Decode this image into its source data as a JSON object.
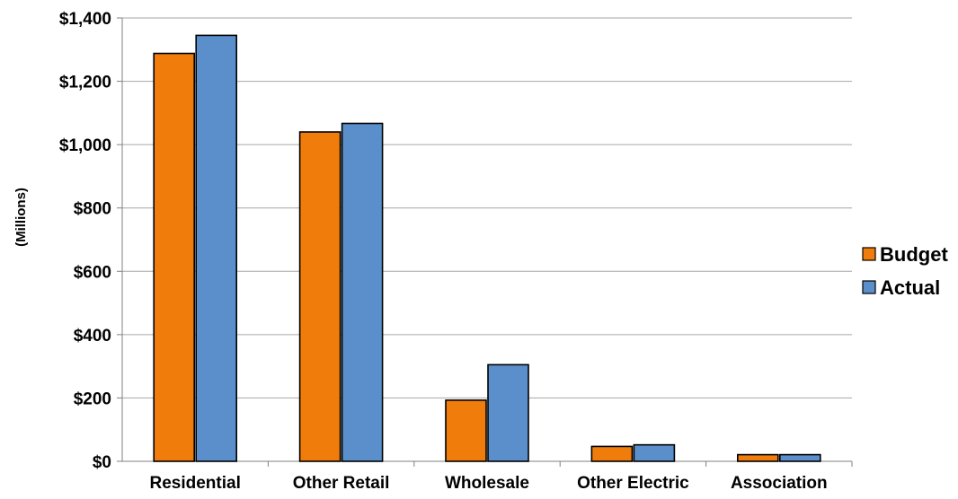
{
  "chart_data": {
    "type": "bar",
    "title": "",
    "xlabel": "",
    "ylabel": "(Millions)",
    "ylim": [
      0,
      1400
    ],
    "y_ticks": [
      0,
      200,
      400,
      600,
      800,
      1000,
      1200,
      1400
    ],
    "y_tick_labels": [
      "$0",
      "$200",
      "$400",
      "$600",
      "$800",
      "$1,000",
      "$1,200",
      "$1,400"
    ],
    "categories": [
      "Residential",
      "Other Retail",
      "Wholesale",
      "Other Electric",
      "Association"
    ],
    "series": [
      {
        "name": "Budget",
        "values": [
          1288,
          1040,
          193,
          47,
          21
        ],
        "color": "#F07C0C"
      },
      {
        "name": "Actual",
        "values": [
          1345,
          1067,
          305,
          52,
          21
        ],
        "color": "#5B8FCC"
      }
    ],
    "grid": true,
    "legend_position": "right"
  }
}
